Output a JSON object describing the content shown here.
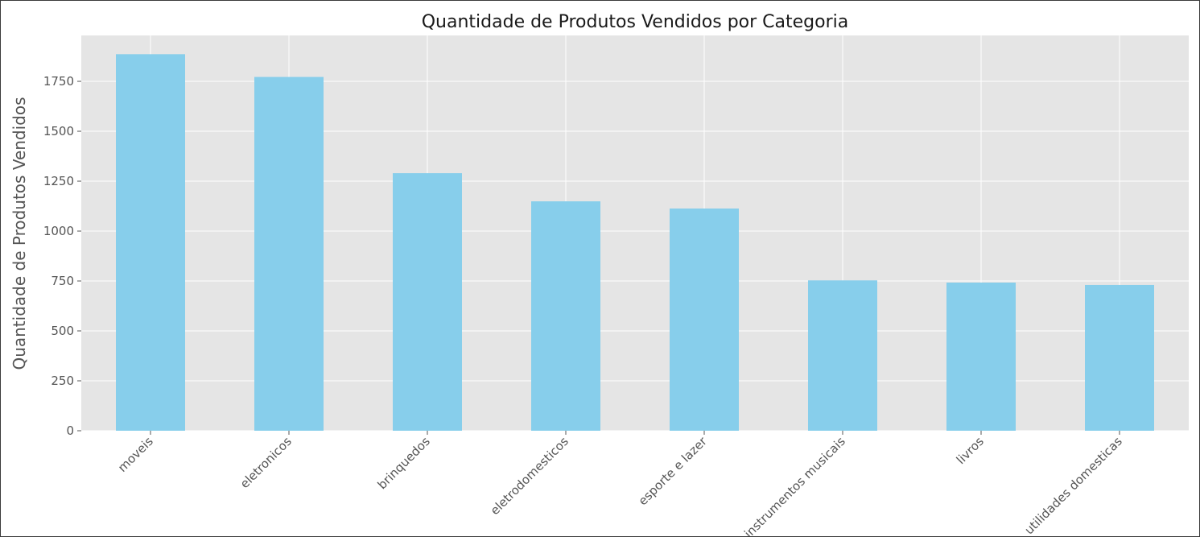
{
  "chart_data": {
    "type": "bar",
    "title": "Quantidade de Produtos Vendidos por Categoria",
    "xlabel": "",
    "ylabel": "Quantidade de Produtos Vendidos",
    "categories": [
      "moveis",
      "eletronicos",
      "brinquedos",
      "eletrodomesticos",
      "esporte e lazer",
      "instrumentos musicais",
      "livros",
      "utilidades domesticas"
    ],
    "values": [
      1886,
      1772,
      1290,
      1149,
      1113,
      753,
      742,
      730
    ],
    "yticks": [
      0,
      250,
      500,
      750,
      1000,
      1250,
      1500,
      1750
    ],
    "ylim": [
      0,
      1980
    ],
    "grid": true,
    "bar_color": "#87CEEB",
    "plot_background": "#E5E5E5",
    "grid_color": "#FFFFFF"
  }
}
